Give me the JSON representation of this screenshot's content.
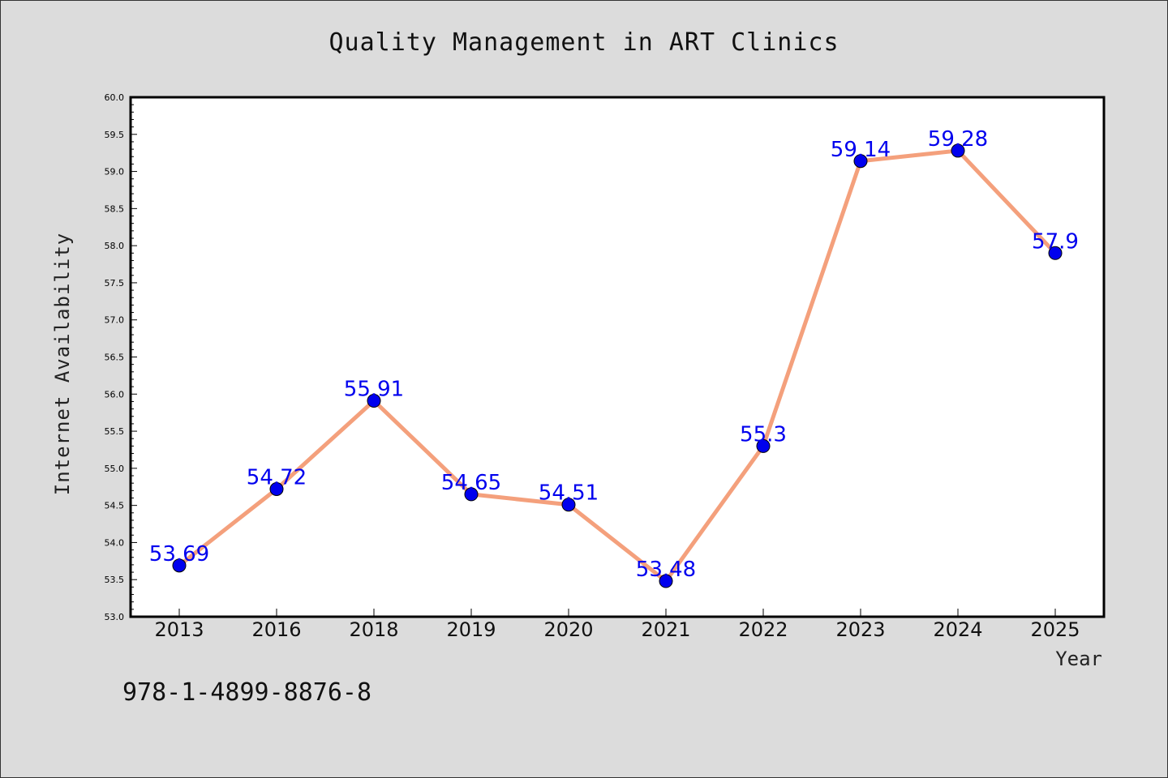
{
  "chart_data": {
    "type": "line",
    "title": "Quality Management in ART Clinics",
    "xlabel": "Year",
    "ylabel": "Internet Availability",
    "categories": [
      "2013",
      "2016",
      "2018",
      "2019",
      "2020",
      "2021",
      "2022",
      "2023",
      "2024",
      "2025"
    ],
    "values": [
      53.69,
      54.72,
      55.91,
      54.65,
      54.51,
      53.48,
      55.3,
      59.14,
      59.28,
      57.9
    ],
    "data_labels": [
      "53.69",
      "54.72",
      "55.91",
      "54.65",
      "54.51",
      "53.48",
      "55.3",
      "59.14",
      "59.28",
      "57.9"
    ],
    "ylim": [
      53.0,
      60.0
    ],
    "yticks": [
      "53.0",
      "53.5",
      "54.0",
      "54.5",
      "55.0",
      "55.5",
      "56.0",
      "56.5",
      "57.0",
      "57.5",
      "58.0",
      "58.5",
      "59.0",
      "59.5",
      "60.0"
    ],
    "grid": false,
    "line_color": "#f4a07c",
    "marker_color": "#0000ee",
    "label_color": "#0000ee",
    "background_color": "#dcdcdc",
    "plot_background_color": "#ffffff"
  },
  "note": "978-1-4899-8876-8"
}
